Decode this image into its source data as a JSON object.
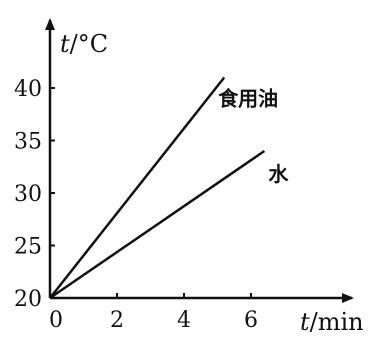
{
  "chart_data": {
    "type": "line",
    "xlabel_var": "t",
    "xlabel_unit": "/min",
    "ylabel_var": "t",
    "ylabel_unit": "/°C",
    "x_ticks": [
      "0",
      "2",
      "4",
      "6"
    ],
    "y_ticks": [
      "20",
      "25",
      "30",
      "35",
      "40"
    ],
    "xlim": [
      0,
      8.5
    ],
    "ylim": [
      20,
      45
    ],
    "grid": false,
    "series": [
      {
        "name": "食用油",
        "x": [
          0,
          5.2
        ],
        "y": [
          20,
          41
        ]
      },
      {
        "name": "水",
        "x": [
          0,
          6.4
        ],
        "y": [
          20,
          34
        ]
      }
    ]
  }
}
